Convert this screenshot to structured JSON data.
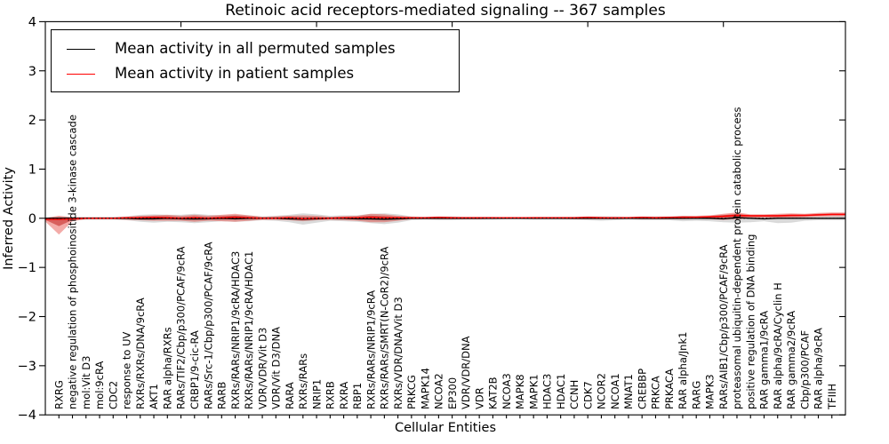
{
  "title": "Retinoic acid receptors-mediated signaling -- 367 samples",
  "legend": {
    "position": "upper left",
    "items": [
      {
        "label": "Mean activity in all permuted samples",
        "color": "#000000"
      },
      {
        "label": "Mean activity in patient samples",
        "color": "#ff0000"
      }
    ]
  },
  "colors": {
    "background": "#ffffff",
    "axis": "#000000",
    "permuted_band": "rgba(130,130,130,0.30)",
    "patient_band": "rgba(225,45,38,0.40)",
    "patient_band_core": "rgba(190,20,15,0.50)",
    "permuted_line": "#000000",
    "patient_line": "#ff0000",
    "zero_line": "#000000"
  },
  "chart_data": {
    "type": "line",
    "title": "Retinoic acid receptors-mediated signaling -- 367 samples",
    "xlabel": "Cellular Entities",
    "ylabel": "Inferred Activity",
    "ylim": [
      -4,
      4
    ],
    "ytick_values": [
      4,
      3,
      2,
      1,
      0,
      -1,
      -2,
      -3,
      -4
    ],
    "ytick_labels": [
      "4",
      "3",
      "2",
      "1",
      "0",
      "−1",
      "−2",
      "−3",
      "−4"
    ],
    "grid": false,
    "legend_position": "upper left",
    "zero_line": {
      "style": "dotted",
      "color": "#000000",
      "y": 0
    },
    "categories": [
      "RXRG",
      "negative regulation of phosphoinositide 3-kinase cascade",
      "mol:Vit D3",
      "mol:9cRA",
      "CDC2",
      "response to UV",
      "RXRs/RXRs/DNA/9cRA",
      "AKT1",
      "RAR alpha/RXRs",
      "RARs/TIF2/Cbp/p300/PCAF/9cRA",
      "CRBP1/9-cic-RA",
      "RARs/Src-1/Cbp/p300/PCAF/9cRA",
      "RARB",
      "RXRs/RARs/NRIP1/9cRA/HDAC3",
      "RXRs/RARs/NRIP1/9cRA/HDAC1",
      "VDR/VDR/Vit D3",
      "VDR/Vit D3/DNA",
      "RARA",
      "RXRs/RARs",
      "NRIP1",
      "RXRB",
      "RXRA",
      "RBP1",
      "RXRs/RARs/NRIP1/9cRA",
      "RXRs/RARs/SMRT(N-CoR2)/9cRA",
      "RXRs/VDR/DNA/Vit D3",
      "PRKCG",
      "MAPK14",
      "NCOA2",
      "EP300",
      "VDR/VDR/DNA",
      "VDR",
      "KAT2B",
      "NCOA3",
      "MAPK8",
      "MAPK1",
      "HDAC3",
      "HDAC1",
      "CCNH",
      "CDK7",
      "NCOR2",
      "NCOA1",
      "MNAT1",
      "CREBBP",
      "PRKCA",
      "PRKACA",
      "RAR alpha/Jnk1",
      "RARG",
      "MAPK3",
      "RARs/AIB1/Cbp/p300/PCAF/9cRA",
      "proteasomal ubiquitin-dependent protein catabolic process",
      "positive regulation of DNA binding",
      "RAR gamma1/9cRA",
      "RAR alpha/9cRA/Cyclin H",
      "RAR gamma2/9cRA",
      "Cbp/p300/PCAF",
      "RAR alpha/9cRA",
      "TFIIH"
    ],
    "series": [
      {
        "name": "Mean activity in all permuted samples",
        "type": "line",
        "color": "#000000",
        "values": [
          0,
          0,
          0,
          0,
          0,
          0,
          -0.01,
          -0.01,
          0,
          -0.01,
          -0.015,
          -0.01,
          0,
          -0.01,
          0,
          0,
          0,
          -0.01,
          -0.02,
          -0.01,
          0,
          0,
          -0.01,
          -0.015,
          -0.02,
          -0.01,
          0,
          0,
          0,
          0,
          0,
          0,
          0,
          0,
          0,
          0,
          0,
          0,
          0,
          0,
          0,
          0,
          0,
          0,
          0,
          0,
          0,
          0,
          0,
          -0.01,
          0.01,
          0,
          -0.01,
          0,
          0,
          0,
          0,
          0
        ]
      },
      {
        "name": "Mean activity in patient samples",
        "type": "line",
        "color": "#ff0000",
        "values": [
          -0.02,
          -0.01,
          0,
          0,
          0,
          0.01,
          0.01,
          0.02,
          0.01,
          0,
          0.01,
          0,
          0.01,
          0.02,
          0.01,
          0,
          0,
          0.01,
          -0.01,
          0,
          0,
          0.01,
          0.01,
          0.02,
          0.01,
          0.01,
          0.01,
          0.01,
          0.02,
          0.01,
          0.01,
          0.01,
          0.01,
          0.01,
          0.01,
          0.01,
          0.01,
          0.01,
          0.01,
          0.02,
          0.01,
          0.01,
          0.01,
          0.02,
          0.01,
          0.02,
          0.02,
          0.02,
          0.03,
          0.04,
          0.06,
          0.05,
          0.05,
          0.05,
          0.06,
          0.06,
          0.07,
          0.08
        ]
      },
      {
        "name": "Permuted samples spread (std band)",
        "type": "band",
        "color": "rgba(130,130,130,0.30)",
        "low": [
          -0.04,
          -0.03,
          -0.03,
          -0.03,
          -0.03,
          -0.04,
          -0.07,
          -0.09,
          -0.07,
          -0.08,
          -0.1,
          -0.08,
          -0.06,
          -0.07,
          -0.06,
          -0.04,
          -0.05,
          -0.08,
          -0.13,
          -0.09,
          -0.05,
          -0.06,
          -0.07,
          -0.1,
          -0.12,
          -0.09,
          -0.04,
          -0.03,
          -0.04,
          -0.04,
          -0.03,
          -0.03,
          -0.03,
          -0.02,
          -0.02,
          -0.03,
          -0.03,
          -0.03,
          -0.03,
          -0.04,
          -0.05,
          -0.04,
          -0.03,
          -0.04,
          -0.04,
          -0.04,
          -0.06,
          -0.05,
          -0.06,
          -0.08,
          -0.09,
          -0.08,
          -0.06,
          -0.1,
          -0.09,
          -0.05,
          -0.04,
          -0.04
        ],
        "high": [
          0.04,
          0.03,
          0.03,
          0.03,
          0.03,
          0.04,
          0.07,
          0.08,
          0.07,
          0.07,
          0.09,
          0.07,
          0.06,
          0.07,
          0.06,
          0.04,
          0.05,
          0.07,
          0.1,
          0.08,
          0.05,
          0.06,
          0.06,
          0.09,
          0.1,
          0.08,
          0.04,
          0.03,
          0.04,
          0.04,
          0.03,
          0.03,
          0.03,
          0.02,
          0.02,
          0.03,
          0.03,
          0.03,
          0.03,
          0.04,
          0.04,
          0.04,
          0.03,
          0.04,
          0.04,
          0.04,
          0.05,
          0.04,
          0.05,
          0.07,
          0.08,
          0.04,
          0.04,
          0.05,
          0.04,
          0.04,
          0.04,
          0.05
        ]
      },
      {
        "name": "Patient samples spread (std band)",
        "type": "band",
        "color": "rgba(225,45,38,0.40)",
        "core_color": "rgba(190,20,15,0.50)",
        "low": [
          -0.33,
          -0.06,
          -0.02,
          -0.02,
          -0.02,
          -0.03,
          -0.04,
          -0.05,
          -0.05,
          -0.05,
          -0.07,
          -0.05,
          -0.06,
          -0.07,
          -0.05,
          -0.03,
          -0.03,
          -0.04,
          -0.06,
          -0.04,
          -0.03,
          -0.04,
          -0.05,
          -0.08,
          -0.08,
          -0.05,
          -0.02,
          -0.02,
          -0.02,
          -0.02,
          -0.02,
          -0.02,
          -0.01,
          -0.01,
          -0.01,
          -0.01,
          -0.01,
          -0.01,
          -0.02,
          -0.02,
          -0.02,
          -0.02,
          -0.01,
          -0.02,
          -0.02,
          -0.02,
          -0.02,
          -0.01,
          -0.02,
          -0.03,
          -0.02,
          0.0,
          0.01,
          0.0,
          0.01,
          0.02,
          0.03,
          0.04
        ],
        "high": [
          0.05,
          0.02,
          0.02,
          0.02,
          0.02,
          0.03,
          0.05,
          0.06,
          0.07,
          0.05,
          0.07,
          0.05,
          0.07,
          0.09,
          0.06,
          0.03,
          0.04,
          0.05,
          0.06,
          0.05,
          0.03,
          0.04,
          0.05,
          0.09,
          0.08,
          0.05,
          0.03,
          0.02,
          0.03,
          0.03,
          0.02,
          0.02,
          0.02,
          0.02,
          0.02,
          0.02,
          0.02,
          0.02,
          0.02,
          0.03,
          0.03,
          0.02,
          0.02,
          0.03,
          0.03,
          0.03,
          0.05,
          0.05,
          0.06,
          0.09,
          0.12,
          0.08,
          0.08,
          0.09,
          0.1,
          0.09,
          0.11,
          0.12
        ]
      }
    ]
  }
}
